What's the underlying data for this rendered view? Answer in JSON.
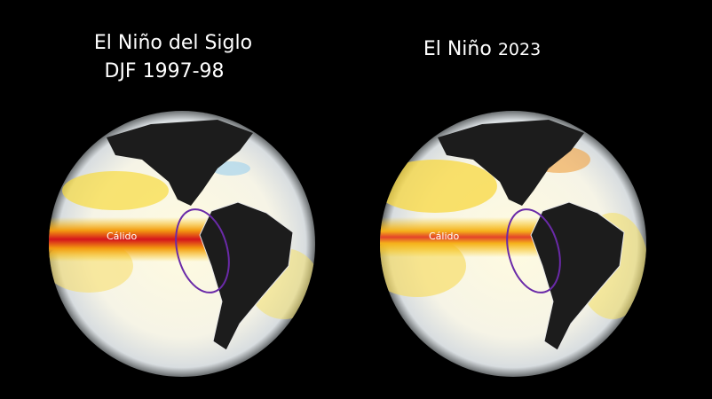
{
  "left": {
    "title": "El Niño del Siglo",
    "subtitle": "DJF 1997-98",
    "label": "Cálido"
  },
  "right": {
    "title": "El Niño",
    "year": "2023",
    "label": "Cálido"
  }
}
